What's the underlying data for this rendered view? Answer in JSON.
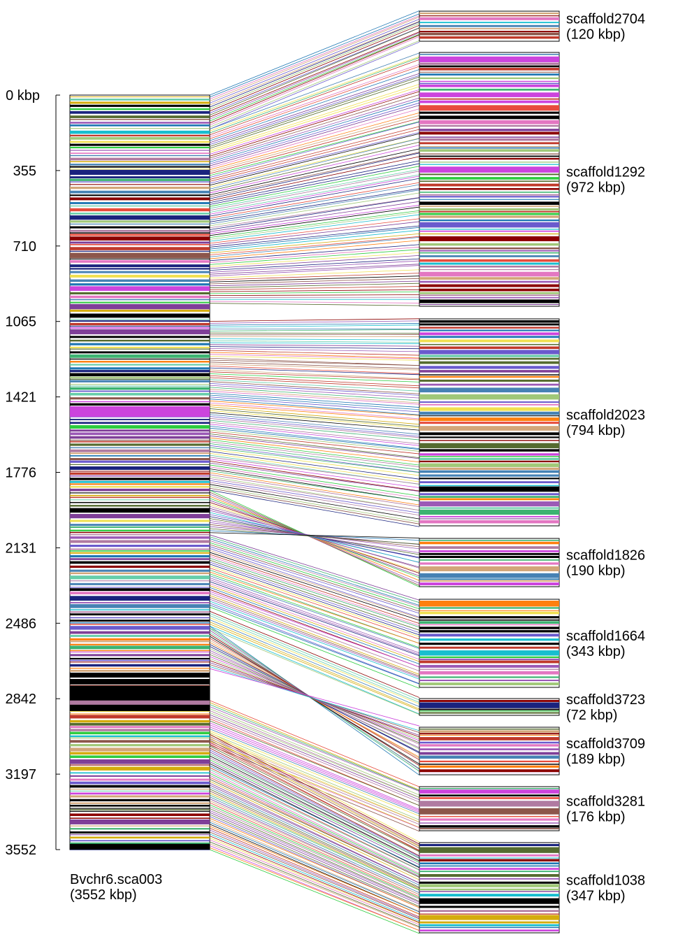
{
  "axis": {
    "ticks": [
      "0 kbp",
      "355",
      "710",
      "1065",
      "1421",
      "1776",
      "2131",
      "2486",
      "2842",
      "3197",
      "3552"
    ],
    "max_kbp": 3552
  },
  "chromosome": {
    "name": "Bvchr6.sca003",
    "size_label": "(3552 kbp)",
    "length_kbp": 3552
  },
  "scaffolds": [
    {
      "name": "scaffold2704",
      "size_label": "(120 kbp)",
      "length_kbp": 120
    },
    {
      "name": "scaffold1292",
      "size_label": "(972 kbp)",
      "length_kbp": 972
    },
    {
      "name": "scaffold2023",
      "size_label": "(794 kbp)",
      "length_kbp": 794
    },
    {
      "name": "scaffold1826",
      "size_label": "(190 kbp)",
      "length_kbp": 190
    },
    {
      "name": "scaffold1664",
      "size_label": "(343 kbp)",
      "length_kbp": 343
    },
    {
      "name": "scaffold3723",
      "size_label": "(72 kbp)",
      "length_kbp": 72
    },
    {
      "name": "scaffold3709",
      "size_label": "(189 kbp)",
      "length_kbp": 189
    },
    {
      "name": "scaffold3281",
      "size_label": "(176 kbp)",
      "length_kbp": 176
    },
    {
      "name": "scaffold1038",
      "size_label": "(347 kbp)",
      "length_kbp": 347
    }
  ],
  "palette": [
    "#b07aa1",
    "#9b59b6",
    "#2ecc40",
    "#e74c3c",
    "#1f77b4",
    "#d4ac0d",
    "#17becf",
    "#8c564b",
    "#000000",
    "#7f3f98",
    "#e377c2",
    "#3cb371",
    "#ff7f0e",
    "#1a237e",
    "#c0392b",
    "#a0c878",
    "#6a5acd",
    "#d2a679",
    "#66cdaa",
    "#cc44dd",
    "#556b2f",
    "#4682b4",
    "#f0e050",
    "#8b0000"
  ],
  "highlight_bands": [
    {
      "on": "chromosome",
      "start_kbp": 1470,
      "end_kbp": 1515,
      "color": "#cc44dd"
    },
    {
      "on": "chromosome",
      "start_kbp": 2780,
      "end_kbp": 2850,
      "color": "#000000"
    },
    {
      "on": "chromosome",
      "start_kbp": 2870,
      "end_kbp": 2900,
      "color": "#000000"
    },
    {
      "on": "chromosome",
      "start_kbp": 3525,
      "end_kbp": 3552,
      "color": "#000000"
    }
  ],
  "segments": [
    {
      "chr": [
        0,
        160
      ],
      "scaffold": 0,
      "sc": [
        0,
        120
      ],
      "orient": "+"
    },
    {
      "chr": [
        160,
        980
      ],
      "scaffold": 1,
      "sc": [
        0,
        972
      ],
      "orient": "+"
    },
    {
      "chr": [
        1065,
        1860
      ],
      "scaffold": 2,
      "sc": [
        0,
        794
      ],
      "orient": "+"
    },
    {
      "chr": [
        1860,
        2060
      ],
      "scaffold": 3,
      "sc": [
        0,
        190
      ],
      "orient": "-"
    },
    {
      "chr": [
        2070,
        2410
      ],
      "scaffold": 4,
      "sc": [
        0,
        343
      ],
      "orient": "+"
    },
    {
      "chr": [
        2430,
        2510
      ],
      "scaffold": 5,
      "sc": [
        0,
        72
      ],
      "orient": "+"
    },
    {
      "chr": [
        2500,
        2700
      ],
      "scaffold": 6,
      "sc": [
        0,
        189
      ],
      "orient": "-"
    },
    {
      "chr": [
        2850,
        3060
      ],
      "scaffold": 7,
      "sc": [
        0,
        176
      ],
      "orient": "+"
    },
    {
      "chr": [
        3000,
        3552
      ],
      "scaffold": 8,
      "sc": [
        0,
        347
      ],
      "orient": "+"
    }
  ]
}
